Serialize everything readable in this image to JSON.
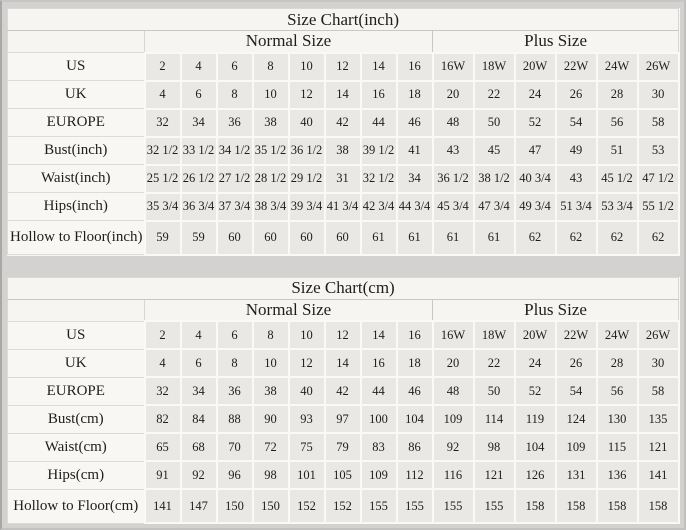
{
  "colors": {
    "page_bg": "#d3d2d0",
    "table_bg": "#f6f5f2",
    "label_cell_bg": "#f8f7f4",
    "data_cell_bg": "#e9e8e4",
    "text": "#1e1e1e"
  },
  "chart_data": [
    {
      "type": "table",
      "title": "Size Chart(inch)",
      "normal_label": "Normal Size",
      "plus_label": "Plus Size",
      "rows": [
        {
          "label": "US",
          "normal": [
            "2",
            "4",
            "6",
            "8",
            "10",
            "12",
            "14",
            "16"
          ],
          "plus": [
            "16W",
            "18W",
            "20W",
            "22W",
            "24W",
            "26W"
          ]
        },
        {
          "label": "UK",
          "normal": [
            "4",
            "6",
            "8",
            "10",
            "12",
            "14",
            "16",
            "18"
          ],
          "plus": [
            "20",
            "22",
            "24",
            "26",
            "28",
            "30"
          ]
        },
        {
          "label": "EUROPE",
          "normal": [
            "32",
            "34",
            "36",
            "38",
            "40",
            "42",
            "44",
            "46"
          ],
          "plus": [
            "48",
            "50",
            "52",
            "54",
            "56",
            "58"
          ]
        },
        {
          "label": "Bust(inch)",
          "normal": [
            "32 1/2",
            "33 1/2",
            "34 1/2",
            "35 1/2",
            "36 1/2",
            "38",
            "39 1/2",
            "41"
          ],
          "plus": [
            "43",
            "45",
            "47",
            "49",
            "51",
            "53"
          ]
        },
        {
          "label": "Waist(inch)",
          "normal": [
            "25 1/2",
            "26 1/2",
            "27 1/2",
            "28 1/2",
            "29 1/2",
            "31",
            "32 1/2",
            "34"
          ],
          "plus": [
            "36 1/2",
            "38 1/2",
            "40 3/4",
            "43",
            "45 1/2",
            "47 1/2"
          ]
        },
        {
          "label": "Hips(inch)",
          "normal": [
            "35 3/4",
            "36 3/4",
            "37 3/4",
            "38 3/4",
            "39 3/4",
            "41 3/4",
            "42 3/4",
            "44 3/4"
          ],
          "plus": [
            "45 3/4",
            "47 3/4",
            "49 3/4",
            "51 3/4",
            "53 3/4",
            "55 1/2"
          ]
        },
        {
          "label": "Hollow to Floor(inch)",
          "normal": [
            "59",
            "59",
            "60",
            "60",
            "60",
            "60",
            "61",
            "61"
          ],
          "plus": [
            "61",
            "61",
            "62",
            "62",
            "62",
            "62"
          ]
        }
      ]
    },
    {
      "type": "table",
      "title": "Size Chart(cm)",
      "normal_label": "Normal Size",
      "plus_label": "Plus Size",
      "rows": [
        {
          "label": "US",
          "normal": [
            "2",
            "4",
            "6",
            "8",
            "10",
            "12",
            "14",
            "16"
          ],
          "plus": [
            "16W",
            "18W",
            "20W",
            "22W",
            "24W",
            "26W"
          ]
        },
        {
          "label": "UK",
          "normal": [
            "4",
            "6",
            "8",
            "10",
            "12",
            "14",
            "16",
            "18"
          ],
          "plus": [
            "20",
            "22",
            "24",
            "26",
            "28",
            "30"
          ]
        },
        {
          "label": "EUROPE",
          "normal": [
            "32",
            "34",
            "36",
            "38",
            "40",
            "42",
            "44",
            "46"
          ],
          "plus": [
            "48",
            "50",
            "52",
            "54",
            "56",
            "58"
          ]
        },
        {
          "label": "Bust(cm)",
          "normal": [
            "82",
            "84",
            "88",
            "90",
            "93",
            "97",
            "100",
            "104"
          ],
          "plus": [
            "109",
            "114",
            "119",
            "124",
            "130",
            "135"
          ]
        },
        {
          "label": "Waist(cm)",
          "normal": [
            "65",
            "68",
            "70",
            "72",
            "75",
            "79",
            "83",
            "86"
          ],
          "plus": [
            "92",
            "98",
            "104",
            "109",
            "115",
            "121"
          ]
        },
        {
          "label": "Hips(cm)",
          "normal": [
            "91",
            "92",
            "96",
            "98",
            "101",
            "105",
            "109",
            "112"
          ],
          "plus": [
            "116",
            "121",
            "126",
            "131",
            "136",
            "141"
          ]
        },
        {
          "label": "Hollow to Floor(cm)",
          "normal": [
            "141",
            "147",
            "150",
            "150",
            "152",
            "152",
            "155",
            "155"
          ],
          "plus": [
            "155",
            "155",
            "158",
            "158",
            "158",
            "158"
          ]
        }
      ]
    }
  ]
}
